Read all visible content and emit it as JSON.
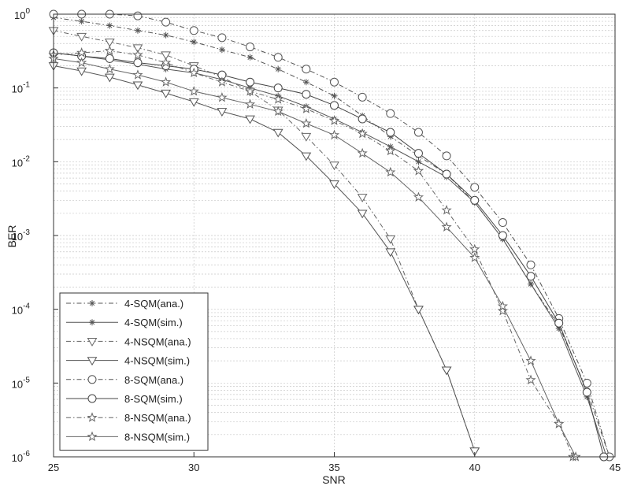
{
  "chart_data": {
    "type": "line",
    "title": "",
    "xlabel": "SNR",
    "ylabel": "BER",
    "xlim": [
      25,
      45
    ],
    "ylim": [
      1e-06,
      1
    ],
    "yscale": "log",
    "grid": true,
    "legend_position": "bottom-left",
    "x_ticks": [
      "25",
      "30",
      "35",
      "40",
      "45"
    ],
    "y_ticks": [
      {
        "base": "10",
        "exp": "0"
      },
      {
        "base": "10",
        "exp": "-1"
      },
      {
        "base": "10",
        "exp": "-2"
      },
      {
        "base": "10",
        "exp": "-3"
      },
      {
        "base": "10",
        "exp": "-4"
      },
      {
        "base": "10",
        "exp": "-5"
      },
      {
        "base": "10",
        "exp": "-6"
      }
    ],
    "series": [
      {
        "name": "4-SQM(ana.)",
        "marker": "asterisk",
        "dash": "dashdot",
        "color": "#555555",
        "x": [
          25,
          26,
          27,
          28,
          29,
          30,
          31,
          32,
          33,
          34,
          35,
          36,
          37,
          38,
          39,
          40,
          41,
          42,
          43,
          44,
          44.8
        ],
        "y": [
          0.9,
          0.8,
          0.7,
          0.6,
          0.52,
          0.42,
          0.33,
          0.26,
          0.18,
          0.12,
          0.078,
          0.042,
          0.022,
          0.012,
          0.0068,
          0.0028,
          0.0009,
          0.00022,
          6e-05,
          8e-06,
          1e-06
        ]
      },
      {
        "name": "4-SQM(sim.)",
        "marker": "asterisk",
        "dash": "solid",
        "color": "#555555",
        "x": [
          25,
          26,
          27,
          28,
          29,
          30,
          31,
          32,
          33,
          34,
          35,
          36,
          37,
          38,
          39,
          40,
          41,
          42,
          43,
          44,
          44.7
        ],
        "y": [
          0.3,
          0.27,
          0.24,
          0.21,
          0.18,
          0.16,
          0.13,
          0.1,
          0.078,
          0.056,
          0.038,
          0.025,
          0.016,
          0.01,
          0.0062,
          0.0028,
          0.0009,
          0.00022,
          5.5e-05,
          6.5e-06,
          1e-06
        ]
      },
      {
        "name": "4-NSQM(ana.)",
        "marker": "triangle-down",
        "dash": "dashdot",
        "color": "#666666",
        "x": [
          25,
          26,
          27,
          28,
          29,
          30,
          31,
          32,
          33,
          34,
          35,
          36,
          37,
          38,
          39,
          40
        ],
        "y": [
          0.6,
          0.5,
          0.42,
          0.35,
          0.28,
          0.2,
          0.14,
          0.09,
          0.05,
          0.022,
          0.009,
          0.0033,
          0.0009,
          0.0001,
          1.5e-05,
          1.2e-06
        ]
      },
      {
        "name": "4-NSQM(sim.)",
        "marker": "triangle-down",
        "dash": "solid",
        "color": "#555555",
        "x": [
          25,
          26,
          27,
          28,
          29,
          30,
          31,
          32,
          33,
          34,
          35,
          36,
          37,
          38,
          39,
          40
        ],
        "y": [
          0.2,
          0.17,
          0.14,
          0.11,
          0.085,
          0.065,
          0.048,
          0.038,
          0.025,
          0.012,
          0.005,
          0.002,
          0.0006,
          0.0001,
          1.5e-05,
          1.2e-06
        ]
      },
      {
        "name": "8-SQM(ana.)",
        "marker": "circle",
        "dash": "dashdot",
        "color": "#555555",
        "x": [
          25,
          26,
          27,
          28,
          29,
          30,
          31,
          32,
          33,
          34,
          35,
          36,
          37,
          38,
          39,
          40,
          41,
          42,
          43,
          44,
          44.8
        ],
        "y": [
          1.0,
          1.0,
          1.0,
          0.95,
          0.78,
          0.6,
          0.48,
          0.36,
          0.26,
          0.18,
          0.12,
          0.075,
          0.045,
          0.025,
          0.012,
          0.0045,
          0.0015,
          0.0004,
          7.5e-05,
          1e-05,
          1e-06
        ]
      },
      {
        "name": "8-SQM(sim.)",
        "marker": "circle",
        "dash": "solid",
        "color": "#444444",
        "x": [
          25,
          26,
          27,
          28,
          29,
          30,
          31,
          32,
          33,
          34,
          35,
          36,
          37,
          38,
          39,
          40,
          41,
          42,
          43,
          44,
          44.6
        ],
        "y": [
          0.3,
          0.27,
          0.25,
          0.22,
          0.2,
          0.18,
          0.15,
          0.12,
          0.1,
          0.082,
          0.058,
          0.038,
          0.025,
          0.013,
          0.0068,
          0.003,
          0.001,
          0.00028,
          6.5e-05,
          7.5e-06,
          1e-06
        ]
      },
      {
        "name": "8-NSQM(ana.)",
        "marker": "star",
        "dash": "dashdot",
        "color": "#666666",
        "x": [
          25,
          26,
          27,
          28,
          29,
          30,
          31,
          32,
          33,
          34,
          35,
          36,
          37,
          38,
          39,
          40,
          41,
          42,
          43,
          43.5
        ],
        "y": [
          0.28,
          0.3,
          0.32,
          0.28,
          0.22,
          0.16,
          0.12,
          0.09,
          0.07,
          0.052,
          0.036,
          0.024,
          0.014,
          0.0075,
          0.0022,
          0.00065,
          9.5e-05,
          1.1e-05,
          2.8e-06,
          1e-06
        ]
      },
      {
        "name": "8-NSQM(sim.)",
        "marker": "star",
        "dash": "solid",
        "color": "#666666",
        "x": [
          25,
          26,
          27,
          28,
          29,
          30,
          31,
          32,
          33,
          34,
          35,
          36,
          37,
          38,
          39,
          40,
          41,
          42,
          43,
          43.6
        ],
        "y": [
          0.25,
          0.22,
          0.18,
          0.15,
          0.12,
          0.09,
          0.074,
          0.06,
          0.048,
          0.033,
          0.023,
          0.013,
          0.0072,
          0.0033,
          0.0013,
          0.0005,
          0.00011,
          2e-05,
          2.8e-06,
          1e-06
        ]
      }
    ]
  }
}
